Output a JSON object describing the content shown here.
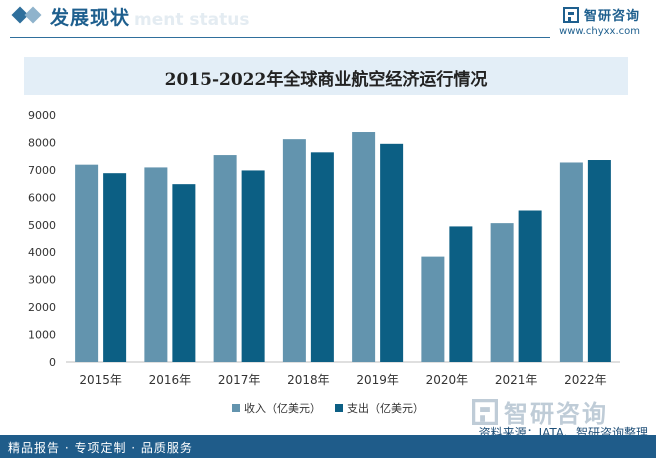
{
  "header": {
    "title": "发展现状",
    "watermark": "ment status"
  },
  "brand": {
    "name": "智研咨询",
    "url": "www.chyxx.com"
  },
  "chart_data": {
    "type": "bar",
    "title": "2015-2022年全球商业航空经济运行情况",
    "categories": [
      "2015年",
      "2016年",
      "2017年",
      "2018年",
      "2019年",
      "2020年",
      "2021年",
      "2022年"
    ],
    "series": [
      {
        "name": "收入（亿美元）",
        "color": "#6394ae",
        "values": [
          7190,
          7090,
          7540,
          8120,
          8380,
          3840,
          5060,
          7270
        ]
      },
      {
        "name": "支出（亿美元）",
        "color": "#0c5f84",
        "values": [
          6880,
          6480,
          6980,
          7640,
          7950,
          4940,
          5520,
          7360
        ]
      }
    ],
    "ylim": [
      0,
      9000
    ],
    "yticks": [
      0,
      1000,
      2000,
      3000,
      4000,
      5000,
      6000,
      7000,
      8000,
      9000
    ],
    "legend_position": "bottom",
    "grid": false
  },
  "footer": {
    "tagline": "精品报告 · 专项定制 · 品质服务",
    "source": "资料来源：IATA、智研咨询整理",
    "logo_text": "智研咨询"
  }
}
